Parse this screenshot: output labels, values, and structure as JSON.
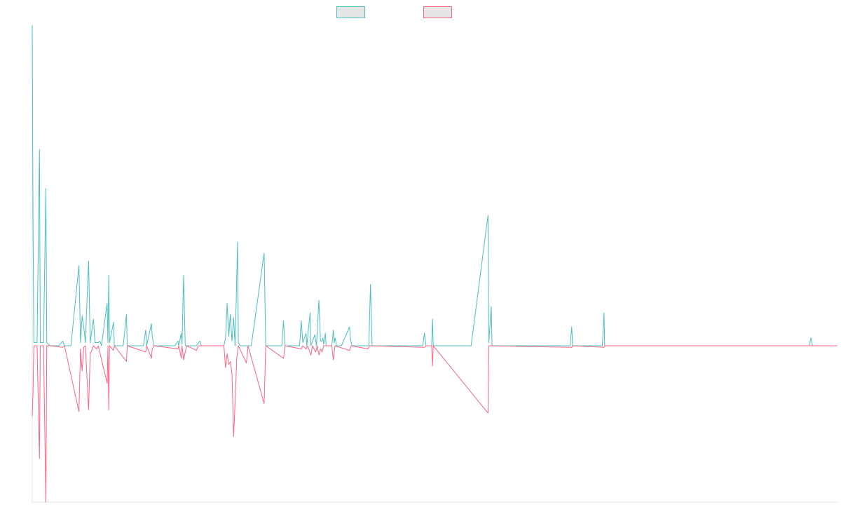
{
  "chart_data": {
    "type": "line",
    "title": "",
    "xlabel": "",
    "ylabel": "",
    "grid": false,
    "legend_placement": "top-center",
    "xlim": [
      0,
      1000
    ],
    "ylim": [
      -1.0,
      2.04
    ],
    "series": [
      {
        "color": "#4bc0c0",
        "points": [
          [
            0,
            2.04
          ],
          [
            1,
            0.8
          ],
          [
            2,
            0.02
          ],
          [
            6,
            0.02
          ],
          [
            9,
            1.25
          ],
          [
            10,
            0.02
          ],
          [
            14,
            0.02
          ],
          [
            17,
            1.0
          ],
          [
            18,
            0.02
          ],
          [
            22,
            0
          ],
          [
            33,
            0
          ],
          [
            38,
            0.03
          ],
          [
            40,
            0
          ],
          [
            48,
            0
          ],
          [
            58,
            0.51
          ],
          [
            60,
            0.02
          ],
          [
            62,
            0.19
          ],
          [
            64,
            0.12
          ],
          [
            66,
            0.02
          ],
          [
            70,
            0.54
          ],
          [
            72,
            0.02
          ],
          [
            76,
            0.17
          ],
          [
            78,
            0.02
          ],
          [
            82,
            0.02
          ],
          [
            84,
            0.03
          ],
          [
            86,
            0
          ],
          [
            93,
            0.27
          ],
          [
            94,
            0.02
          ],
          [
            95,
            0.45
          ],
          [
            96,
            0.02
          ],
          [
            101,
            0.15
          ],
          [
            102,
            0
          ],
          [
            113,
            0
          ],
          [
            117,
            0.2
          ],
          [
            118,
            0
          ],
          [
            138,
            0
          ],
          [
            141,
            0.1
          ],
          [
            142,
            0
          ],
          [
            148,
            0.14
          ],
          [
            149,
            0.06
          ],
          [
            151,
            0
          ],
          [
            177,
            0
          ],
          [
            181,
            0.03
          ],
          [
            182,
            0
          ],
          [
            185,
            0.08
          ],
          [
            186,
            0.01
          ],
          [
            188,
            0.45
          ],
          [
            190,
            0
          ],
          [
            204,
            0
          ],
          [
            208,
            0.03
          ],
          [
            210,
            0
          ],
          [
            238,
            0
          ],
          [
            240,
            0.05
          ],
          [
            242,
            0.27
          ],
          [
            244,
            0.06
          ],
          [
            246,
            0.2
          ],
          [
            248,
            0.03
          ],
          [
            250,
            0.18
          ],
          [
            252,
            0
          ],
          [
            255,
            0.66
          ],
          [
            256,
            0.02
          ],
          [
            258,
            0
          ],
          [
            272,
            0
          ],
          [
            288,
            0.59
          ],
          [
            290,
            0
          ],
          [
            310,
            0
          ],
          [
            312,
            0.16
          ],
          [
            314,
            0
          ],
          [
            332,
            0
          ],
          [
            334,
            0.16
          ],
          [
            336,
            0.02
          ],
          [
            340,
            0.08
          ],
          [
            341,
            0
          ],
          [
            345,
            0.21
          ],
          [
            346,
            0
          ],
          [
            351,
            0.07
          ],
          [
            353,
            0
          ],
          [
            356,
            0.29
          ],
          [
            358,
            0.03
          ],
          [
            360,
            0.03
          ],
          [
            361,
            0.05
          ],
          [
            362,
            0.01
          ],
          [
            364,
            0.08
          ],
          [
            365,
            0
          ],
          [
            372,
            0
          ],
          [
            374,
            0.1
          ],
          [
            375,
            0.02
          ],
          [
            376,
            0.05
          ],
          [
            378,
            0
          ],
          [
            384,
            0
          ],
          [
            394,
            0.12
          ],
          [
            395,
            0.05
          ],
          [
            397,
            0
          ],
          [
            418,
            0
          ],
          [
            420,
            0.39
          ],
          [
            422,
            0
          ],
          [
            485,
            0
          ],
          [
            487,
            0.08
          ],
          [
            489,
            0
          ],
          [
            496,
            0
          ],
          [
            497,
            0.17
          ],
          [
            498,
            0
          ],
          [
            520,
            0
          ],
          [
            545,
            0
          ],
          [
            566,
            0.83
          ],
          [
            567,
            0.02
          ],
          [
            570,
            0.25
          ],
          [
            571,
            0
          ],
          [
            675,
            0
          ],
          [
            668,
            0
          ],
          [
            670,
            0.12
          ],
          [
            671,
            0
          ],
          [
            708,
            0
          ],
          [
            710,
            0.21
          ],
          [
            711,
            0
          ],
          [
            965,
            0
          ],
          [
            967,
            0.05
          ],
          [
            969,
            0
          ],
          [
            1000,
            0
          ]
        ]
      },
      {
        "color": "#ff6384",
        "points": [
          [
            0,
            -0.45
          ],
          [
            1,
            -0.3
          ],
          [
            2,
            0
          ],
          [
            6,
            0
          ],
          [
            9,
            -0.72
          ],
          [
            10,
            0
          ],
          [
            14,
            0
          ],
          [
            17,
            -1.0
          ],
          [
            18,
            0
          ],
          [
            22,
            0
          ],
          [
            38,
            -0.01
          ],
          [
            40,
            0
          ],
          [
            58,
            -0.42
          ],
          [
            60,
            -0.02
          ],
          [
            62,
            -0.16
          ],
          [
            64,
            -0.01
          ],
          [
            66,
            0
          ],
          [
            70,
            -0.41
          ],
          [
            72,
            -0.05
          ],
          [
            74,
            -0.03
          ],
          [
            76,
            0
          ],
          [
            80,
            -0.02
          ],
          [
            82,
            0
          ],
          [
            93,
            -0.24
          ],
          [
            94,
            0
          ],
          [
            95,
            -0.41
          ],
          [
            96,
            0
          ],
          [
            101,
            -0.03
          ],
          [
            102,
            0
          ],
          [
            117,
            -0.1
          ],
          [
            118,
            0
          ],
          [
            141,
            -0.04
          ],
          [
            142,
            0
          ],
          [
            148,
            -0.08
          ],
          [
            149,
            -0.02
          ],
          [
            151,
            0
          ],
          [
            181,
            -0.02
          ],
          [
            182,
            0
          ],
          [
            185,
            -0.08
          ],
          [
            186,
            0
          ],
          [
            188,
            -0.09
          ],
          [
            190,
            -0.04
          ],
          [
            192,
            0
          ],
          [
            204,
            -0.03
          ],
          [
            206,
            0
          ],
          [
            238,
            0
          ],
          [
            240,
            -0.14
          ],
          [
            242,
            -0.05
          ],
          [
            244,
            -0.12
          ],
          [
            246,
            -0.1
          ],
          [
            248,
            -0.18
          ],
          [
            250,
            -0.58
          ],
          [
            252,
            -0.36
          ],
          [
            254,
            -0.08
          ],
          [
            256,
            0
          ],
          [
            266,
            -0.11
          ],
          [
            268,
            0
          ],
          [
            288,
            -0.37
          ],
          [
            290,
            0
          ],
          [
            312,
            -0.08
          ],
          [
            314,
            0
          ],
          [
            334,
            -0.02
          ],
          [
            336,
            0
          ],
          [
            340,
            -0.02
          ],
          [
            342,
            0
          ],
          [
            346,
            -0.06
          ],
          [
            348,
            0
          ],
          [
            352,
            -0.04
          ],
          [
            354,
            0
          ],
          [
            356,
            -0.06
          ],
          [
            358,
            -0.02
          ],
          [
            360,
            -0.04
          ],
          [
            362,
            0
          ],
          [
            372,
            0
          ],
          [
            374,
            -0.09
          ],
          [
            376,
            0
          ],
          [
            394,
            -0.03
          ],
          [
            396,
            0
          ],
          [
            417,
            -0.02
          ],
          [
            419,
            0
          ],
          [
            487,
            -0.01
          ],
          [
            489,
            0
          ],
          [
            496,
            0
          ],
          [
            497,
            -0.13
          ],
          [
            498,
            0
          ],
          [
            566,
            -0.43
          ],
          [
            567,
            0
          ],
          [
            670,
            -0.01
          ],
          [
            671,
            0
          ],
          [
            710,
            -0.01
          ],
          [
            711,
            0
          ],
          [
            1000,
            0
          ]
        ]
      }
    ]
  }
}
